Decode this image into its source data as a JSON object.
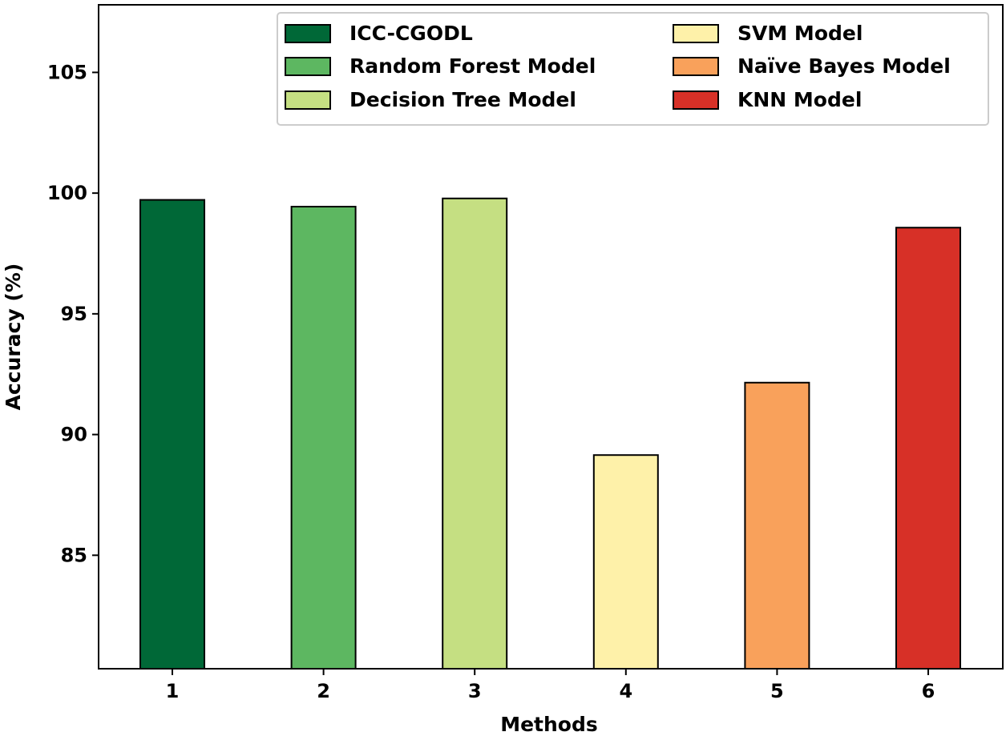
{
  "chart_data": {
    "type": "bar",
    "title": "",
    "xlabel": "Methods",
    "ylabel": "Accuracy (%)",
    "categories": [
      "1",
      "2",
      "3",
      "4",
      "5",
      "6"
    ],
    "series": [
      {
        "name": "ICC-CGODL",
        "color": "#006837",
        "values": [
          99.72,
          null,
          null,
          null,
          null,
          null
        ]
      },
      {
        "name": "Random Forest Model",
        "color": "#5db761",
        "values": [
          null,
          99.44,
          null,
          null,
          null,
          null
        ]
      },
      {
        "name": "Decision Tree Model",
        "color": "#c5df82",
        "values": [
          null,
          null,
          99.78,
          null,
          null,
          null
        ]
      },
      {
        "name": "SVM Model",
        "color": "#fef1a9",
        "values": [
          null,
          null,
          null,
          89.15,
          null,
          null
        ]
      },
      {
        "name": "Naïve Bayes Model",
        "color": "#f9a15b",
        "values": [
          null,
          null,
          null,
          null,
          92.15,
          null
        ]
      },
      {
        "name": "KNN Model",
        "color": "#d73027",
        "values": [
          null,
          null,
          null,
          null,
          null,
          98.57
        ]
      }
    ],
    "ylim": [
      80.3,
      107.8
    ],
    "yticks": [
      85,
      90,
      95,
      100,
      105
    ],
    "grid": false,
    "legend": {
      "placement": "top-right",
      "columns": 2
    }
  }
}
